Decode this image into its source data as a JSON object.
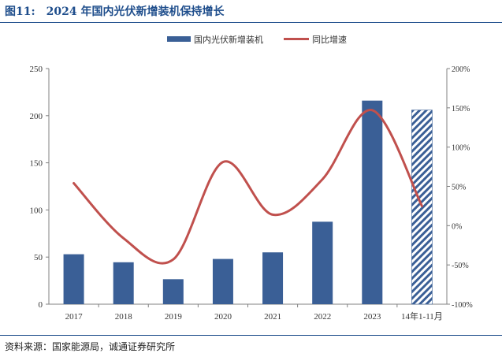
{
  "figure": {
    "number_label": "图11:",
    "title": "2024 年国内光伏新增装机保持增长",
    "source": "资料来源：国家能源局，诚通证券研究所"
  },
  "colors": {
    "bar": "#3a5f96",
    "line": "#c0504d",
    "title": "#1f4e8c"
  },
  "chart_data": {
    "type": "bar",
    "title": "2024 年国内光伏新增装机保持增长",
    "categories": [
      "2017",
      "2018",
      "2019",
      "2020",
      "2021",
      "2022",
      "2023",
      "14年1-11月"
    ],
    "series": [
      {
        "name": "国内光伏新增装机",
        "type": "bar",
        "axis": "left",
        "values": [
          53,
          44.5,
          26.5,
          48,
          55,
          87.5,
          216,
          206
        ],
        "hatched_index": 7
      },
      {
        "name": "同比增速",
        "type": "line",
        "axis": "right",
        "unit": "%",
        "values": [
          54,
          -16,
          -43,
          81,
          14,
          59,
          147,
          25
        ]
      }
    ],
    "y_left": {
      "min": 0,
      "max": 250,
      "ticks": [
        "0",
        "50",
        "100",
        "150",
        "200",
        "250"
      ]
    },
    "y_right": {
      "min": -100,
      "max": 200,
      "ticks": [
        "-100%",
        "-50%",
        "0%",
        "50%",
        "100%",
        "150%",
        "200%"
      ]
    },
    "legend_position": "top-center",
    "grid": false
  }
}
